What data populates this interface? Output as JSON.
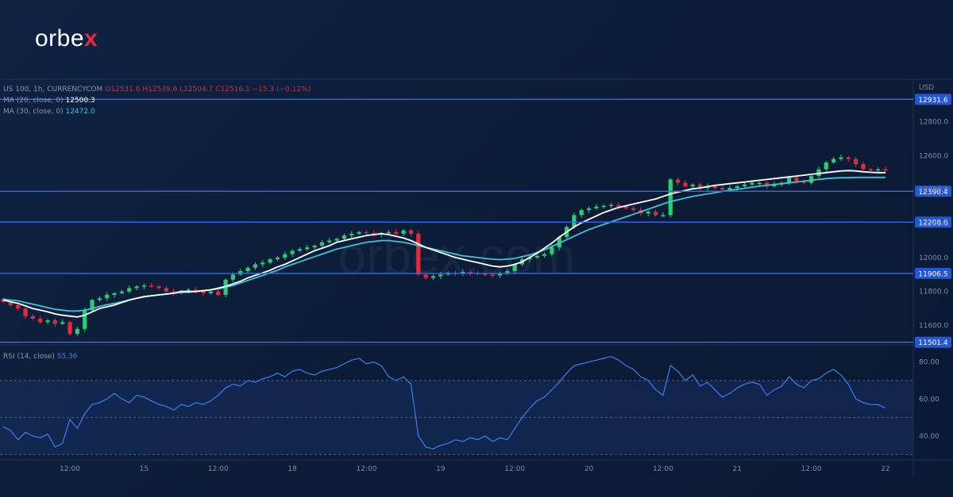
{
  "brand": {
    "logo_main": "orbe",
    "logo_x": "x",
    "watermark": "orbex.com"
  },
  "legend": {
    "symbol": "US 100, 1h, CURRENCYCOM",
    "ohlc": "O12531.6 H12539.6 L12504.7 C12516.1 −15.3 (−0.12%)",
    "ma20_label": "MA (20, close, 0)",
    "ma20_value": "12500.3",
    "ma30_label": "MA (30, close, 0)",
    "ma30_value": "12472.0",
    "rsi_label": "RSI (14, close)",
    "rsi_value": "55.36"
  },
  "colors": {
    "up": "#2ecc71",
    "down": "#e8293c",
    "ma20": "#ffffff",
    "ma30": "#3fc3d6",
    "rsi": "#3f7ef0",
    "level": "#2f6df0",
    "background": "#0d1e3a"
  },
  "chart_data": [
    {
      "type": "candlestick",
      "currency_label": "USD",
      "ylim": [
        11500,
        13050
      ],
      "yticks": [
        11600,
        11800,
        12000,
        12200,
        12400,
        12600,
        12800
      ],
      "ytick_labels": [
        "11600.0",
        "11800.0",
        "12000.0",
        "12200.0",
        "12400.0",
        "12600.0",
        "12800.0"
      ],
      "xtick_labels": [
        "12:00",
        "15",
        "12:00",
        "18",
        "12:00",
        "19",
        "12:00",
        "20",
        "12:00",
        "21",
        "12:00",
        "22"
      ],
      "xtick_index": [
        9,
        19,
        29,
        39,
        49,
        59,
        69,
        79,
        89,
        99,
        109,
        119
      ],
      "levels": [
        12931.6,
        12390.4,
        12208.6,
        11906.5,
        11501.4
      ],
      "level_labels": [
        "12931.6",
        "12390.4",
        "12208.6",
        "11906.5",
        "11501.4"
      ],
      "close": [
        11740,
        11720,
        11700,
        11655,
        11640,
        11620,
        11630,
        11610,
        11620,
        11550,
        11580,
        11690,
        11750,
        11760,
        11780,
        11790,
        11800,
        11820,
        11830,
        11835,
        11830,
        11820,
        11800,
        11790,
        11800,
        11810,
        11800,
        11790,
        11800,
        11780,
        11870,
        11900,
        11920,
        11940,
        11960,
        11970,
        11990,
        12000,
        12020,
        12040,
        12050,
        12060,
        12070,
        12090,
        12100,
        12110,
        12130,
        12140,
        12150,
        12145,
        12135,
        12145,
        12150,
        12140,
        12160,
        12140,
        11900,
        11880,
        11890,
        11900,
        11910,
        11905,
        11915,
        11910,
        11905,
        11900,
        11895,
        11905,
        11920,
        11960,
        11990,
        12000,
        12010,
        12020,
        12060,
        12120,
        12180,
        12250,
        12280,
        12290,
        12300,
        12305,
        12310,
        12300,
        12290,
        12280,
        12260,
        12270,
        12250,
        12250,
        12460,
        12440,
        12420,
        12430,
        12410,
        12420,
        12410,
        12400,
        12410,
        12420,
        12430,
        12440,
        12440,
        12420,
        12430,
        12440,
        12470,
        12450,
        12440,
        12480,
        12520,
        12560,
        12580,
        12590,
        12580,
        12550,
        12520,
        12515,
        12520,
        12516
      ],
      "ma20": [
        11750,
        11740,
        11730,
        11715,
        11700,
        11690,
        11680,
        11668,
        11660,
        11655,
        11650,
        11660,
        11680,
        11700,
        11710,
        11720,
        11735,
        11750,
        11760,
        11770,
        11775,
        11780,
        11785,
        11790,
        11800,
        11800,
        11800,
        11805,
        11810,
        11820,
        11830,
        11845,
        11860,
        11880,
        11895,
        11910,
        11925,
        11945,
        11960,
        11980,
        12000,
        12020,
        12040,
        12055,
        12070,
        12090,
        12100,
        12110,
        12120,
        12130,
        12135,
        12140,
        12135,
        12125,
        12115,
        12100,
        12080,
        12060,
        12045,
        12030,
        12015,
        12000,
        11990,
        11980,
        11970,
        11960,
        11950,
        11945,
        11950,
        11960,
        11975,
        12000,
        12025,
        12055,
        12085,
        12120,
        12150,
        12180,
        12205,
        12225,
        12245,
        12265,
        12280,
        12295,
        12305,
        12315,
        12325,
        12335,
        12345,
        12360,
        12375,
        12385,
        12395,
        12405,
        12410,
        12418,
        12425,
        12430,
        12435,
        12440,
        12445,
        12450,
        12455,
        12460,
        12465,
        12470,
        12475,
        12480,
        12485,
        12490,
        12495,
        12500,
        12505,
        12510,
        12512,
        12510,
        12505,
        12502,
        12500,
        12500
      ],
      "ma30": [
        11755,
        11750,
        11745,
        11735,
        11725,
        11715,
        11705,
        11695,
        11690,
        11685,
        11685,
        11690,
        11700,
        11712,
        11722,
        11730,
        11740,
        11750,
        11760,
        11768,
        11775,
        11780,
        11785,
        11790,
        11795,
        11795,
        11800,
        11805,
        11810,
        11815,
        11825,
        11835,
        11850,
        11865,
        11880,
        11895,
        11910,
        11925,
        11945,
        11960,
        11975,
        11990,
        12005,
        12020,
        12035,
        12050,
        12060,
        12070,
        12080,
        12090,
        12095,
        12100,
        12100,
        12095,
        12090,
        12080,
        12070,
        12060,
        12050,
        12040,
        12030,
        12020,
        12010,
        12005,
        12000,
        11995,
        11990,
        11988,
        11990,
        11995,
        12005,
        12015,
        12030,
        12045,
        12065,
        12085,
        12105,
        12125,
        12145,
        12165,
        12180,
        12195,
        12210,
        12225,
        12240,
        12255,
        12270,
        12285,
        12300,
        12315,
        12330,
        12340,
        12350,
        12360,
        12368,
        12375,
        12382,
        12390,
        12396,
        12402,
        12408,
        12414,
        12420,
        12425,
        12430,
        12435,
        12440,
        12445,
        12450,
        12455,
        12460,
        12465,
        12468,
        12470,
        12470,
        12472,
        12472,
        12472,
        12472,
        12472
      ]
    },
    {
      "type": "line",
      "name": "RSI (14, close)",
      "ylim": [
        28,
        88
      ],
      "yticks": [
        40,
        60,
        80
      ],
      "ytick_labels": [
        "40.00",
        "60.00",
        "80.00"
      ],
      "guides": [
        30,
        50,
        70
      ],
      "values": [
        45,
        43,
        38,
        42,
        40,
        39,
        41,
        34,
        36,
        49,
        44,
        52,
        57,
        58,
        60,
        63,
        60,
        58,
        62,
        61,
        59,
        57,
        56,
        54,
        57,
        56,
        58,
        57,
        59,
        62,
        66,
        68,
        67,
        70,
        69,
        71,
        72,
        74,
        72,
        75,
        76,
        74,
        73,
        75,
        76,
        77,
        79,
        81,
        82,
        79,
        80,
        78,
        72,
        70,
        72,
        68,
        40,
        34,
        33,
        35,
        36,
        38,
        37,
        39,
        38,
        40,
        37,
        39,
        38,
        44,
        50,
        55,
        59,
        61,
        65,
        69,
        74,
        78,
        79,
        80,
        81,
        82,
        83,
        81,
        78,
        76,
        72,
        70,
        65,
        62,
        78,
        75,
        70,
        73,
        67,
        69,
        65,
        61,
        63,
        66,
        68,
        69,
        68,
        62,
        65,
        67,
        72,
        68,
        66,
        70,
        71,
        74,
        76,
        73,
        68,
        60,
        58,
        57,
        57,
        55
      ]
    }
  ]
}
